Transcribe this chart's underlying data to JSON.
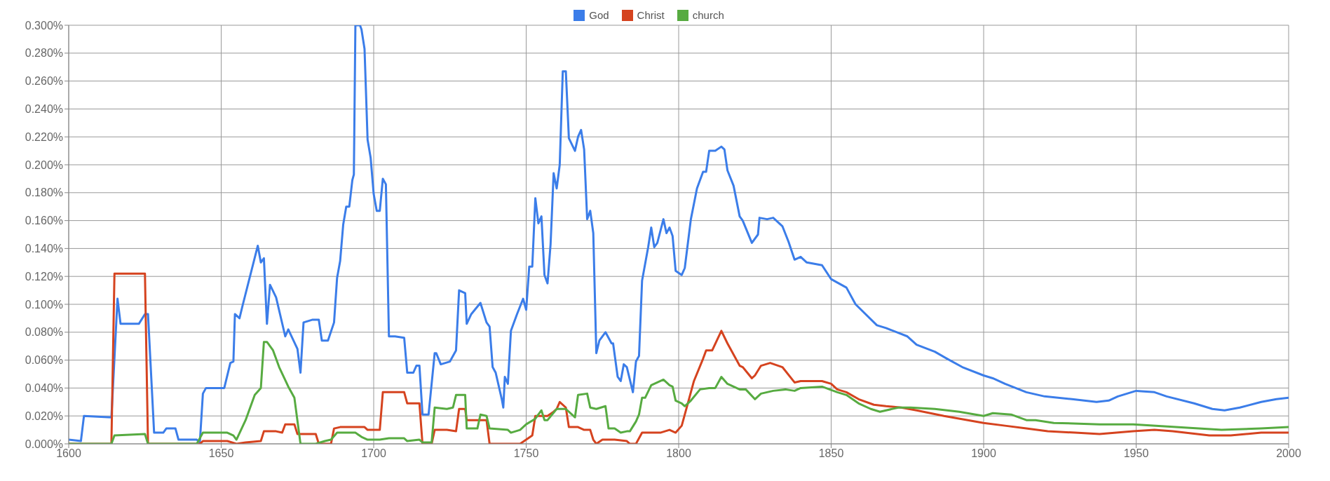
{
  "chart_data": {
    "type": "line",
    "xlim": [
      1600,
      2000
    ],
    "xticks": [
      1600,
      1650,
      1700,
      1750,
      1800,
      1850,
      1900,
      1950,
      2000
    ],
    "ylim": [
      0,
      0.3
    ],
    "yticks": [
      {
        "value": 0,
        "label": "0.000%"
      },
      {
        "value": 0.02,
        "label": "0.020%"
      },
      {
        "value": 0.04,
        "label": "0.040%"
      },
      {
        "value": 0.06,
        "label": "0.060%"
      },
      {
        "value": 0.08,
        "label": "0.080%"
      },
      {
        "value": 0.1,
        "label": "0.100%"
      },
      {
        "value": 0.12,
        "label": "0.120%"
      },
      {
        "value": 0.14,
        "label": "0.140%"
      },
      {
        "value": 0.16,
        "label": "0.160%"
      },
      {
        "value": 0.18,
        "label": "0.180%"
      },
      {
        "value": 0.2,
        "label": "0.200%"
      },
      {
        "value": 0.22,
        "label": "0.220%"
      },
      {
        "value": 0.24,
        "label": "0.240%"
      },
      {
        "value": 0.26,
        "label": "0.260%"
      },
      {
        "value": 0.28,
        "label": "0.280%"
      },
      {
        "value": 0.3,
        "label": "0.300%"
      }
    ],
    "grid": true,
    "legend": "top",
    "marker": "none",
    "line_style": "solid",
    "series": [
      {
        "name": "God",
        "color": "#3b7de9",
        "x": [
          1600,
          1604,
          1605,
          1614,
          1616,
          1617,
          1623,
          1625,
          1626,
          1628,
          1631,
          1632,
          1635,
          1636,
          1642,
          1643,
          1644,
          1645,
          1651,
          1653,
          1654,
          1654.5,
          1656,
          1657,
          1662,
          1663,
          1664,
          1665,
          1666,
          1668,
          1671,
          1672,
          1675,
          1676,
          1677,
          1680,
          1682,
          1683,
          1685,
          1687,
          1688,
          1689,
          1690,
          1691,
          1692,
          1693,
          1693.5,
          1694,
          1695.5,
          1696,
          1697,
          1698,
          1699,
          1700,
          1701,
          1702,
          1703,
          1704,
          1705,
          1707,
          1710,
          1711,
          1713,
          1714,
          1715,
          1716,
          1718,
          1720,
          1720.5,
          1722,
          1725,
          1727,
          1728,
          1730,
          1730.5,
          1732,
          1735,
          1737,
          1738,
          1739,
          1740,
          1742,
          1742.5,
          1743,
          1744,
          1745,
          1747,
          1749,
          1750,
          1751,
          1752,
          1753,
          1754,
          1755,
          1756,
          1757,
          1758,
          1759,
          1760,
          1761,
          1762,
          1763,
          1764,
          1766,
          1767,
          1768,
          1769,
          1770,
          1771,
          1772,
          1773,
          1774,
          1776,
          1778,
          1778.5,
          1780,
          1781,
          1782,
          1783,
          1785,
          1786,
          1787,
          1788,
          1790,
          1791,
          1792,
          1793,
          1795,
          1796,
          1797,
          1798,
          1799,
          1801,
          1802,
          1804,
          1806,
          1808,
          1809,
          1810,
          1812,
          1814,
          1815,
          1816,
          1818,
          1820,
          1821,
          1824,
          1826,
          1826.5,
          1829,
          1831,
          1834,
          1836,
          1838,
          1840,
          1842,
          1847,
          1850,
          1855,
          1858,
          1865,
          1868,
          1875,
          1878,
          1884,
          1888,
          1893,
          1900,
          1903,
          1907,
          1914,
          1920,
          1929,
          1937,
          1941,
          1944,
          1950,
          1956,
          1960,
          1969,
          1975,
          1979,
          1984,
          1991,
          1996,
          2000
        ],
        "values": [
          0.003,
          0.002,
          0.02,
          0.019,
          0.104,
          0.086,
          0.086,
          0.093,
          0.093,
          0.008,
          0.008,
          0.011,
          0.011,
          0.003,
          0.003,
          0.001,
          0.036,
          0.04,
          0.04,
          0.058,
          0.059,
          0.093,
          0.09,
          0.099,
          0.142,
          0.13,
          0.133,
          0.086,
          0.114,
          0.105,
          0.077,
          0.082,
          0.068,
          0.051,
          0.087,
          0.089,
          0.089,
          0.074,
          0.074,
          0.087,
          0.119,
          0.131,
          0.157,
          0.17,
          0.17,
          0.189,
          0.193,
          0.3,
          0.3,
          0.297,
          0.283,
          0.218,
          0.205,
          0.179,
          0.167,
          0.167,
          0.19,
          0.186,
          0.077,
          0.077,
          0.076,
          0.051,
          0.051,
          0.056,
          0.056,
          0.021,
          0.021,
          0.065,
          0.065,
          0.057,
          0.059,
          0.067,
          0.11,
          0.108,
          0.086,
          0.093,
          0.101,
          0.087,
          0.084,
          0.055,
          0.051,
          0.032,
          0.026,
          0.048,
          0.043,
          0.081,
          0.093,
          0.104,
          0.096,
          0.127,
          0.127,
          0.176,
          0.158,
          0.163,
          0.121,
          0.115,
          0.143,
          0.194,
          0.183,
          0.2,
          0.267,
          0.267,
          0.219,
          0.21,
          0.22,
          0.225,
          0.211,
          0.161,
          0.167,
          0.151,
          0.065,
          0.074,
          0.08,
          0.072,
          0.072,
          0.048,
          0.045,
          0.057,
          0.055,
          0.037,
          0.059,
          0.063,
          0.117,
          0.141,
          0.155,
          0.141,
          0.144,
          0.161,
          0.151,
          0.155,
          0.149,
          0.124,
          0.121,
          0.126,
          0.161,
          0.183,
          0.195,
          0.195,
          0.21,
          0.21,
          0.213,
          0.211,
          0.196,
          0.185,
          0.163,
          0.16,
          0.144,
          0.15,
          0.162,
          0.161,
          0.162,
          0.156,
          0.145,
          0.132,
          0.134,
          0.13,
          0.128,
          0.118,
          0.112,
          0.1,
          0.085,
          0.083,
          0.077,
          0.071,
          0.066,
          0.061,
          0.055,
          0.049,
          0.047,
          0.043,
          0.037,
          0.034,
          0.032,
          0.03,
          0.031,
          0.034,
          0.038,
          0.037,
          0.034,
          0.029,
          0.025,
          0.024,
          0.026,
          0.03,
          0.032,
          0.033
        ]
      },
      {
        "name": "Christ",
        "color": "#d5431f",
        "x": [
          1600,
          1614,
          1615,
          1625,
          1626,
          1643,
          1644,
          1652,
          1655,
          1658,
          1663,
          1664,
          1668,
          1670,
          1671,
          1674,
          1675,
          1681,
          1682,
          1686,
          1687,
          1689,
          1697,
          1698,
          1702,
          1703,
          1705,
          1710,
          1711,
          1715,
          1716,
          1719,
          1720,
          1724,
          1727,
          1728,
          1730,
          1730.5,
          1737,
          1738,
          1748,
          1750,
          1752,
          1753,
          1757,
          1759,
          1760,
          1761,
          1763,
          1764,
          1767,
          1769,
          1771,
          1772,
          1773,
          1775,
          1779,
          1783,
          1784,
          1786,
          1788,
          1794,
          1797,
          1799,
          1801,
          1803,
          1805,
          1808,
          1809,
          1811,
          1814,
          1816,
          1820,
          1821,
          1824,
          1825,
          1827,
          1830,
          1834,
          1838,
          1840,
          1847,
          1850,
          1852,
          1855,
          1859,
          1864,
          1868,
          1873,
          1878,
          1887,
          1900,
          1907,
          1914,
          1921,
          1930,
          1938,
          1949,
          1956,
          1962,
          1974,
          1981,
          1991,
          2000
        ],
        "values": [
          0,
          0,
          0.122,
          0.122,
          0,
          0,
          0.002,
          0.002,
          0,
          0.001,
          0.002,
          0.009,
          0.009,
          0.008,
          0.014,
          0.014,
          0.007,
          0.007,
          0,
          0,
          0.011,
          0.012,
          0.012,
          0.01,
          0.01,
          0.037,
          0.037,
          0.037,
          0.029,
          0.029,
          0,
          0,
          0.01,
          0.01,
          0.009,
          0.025,
          0.025,
          0.017,
          0.017,
          0,
          0,
          0.003,
          0.006,
          0.02,
          0.02,
          0.023,
          0.025,
          0.03,
          0.026,
          0.012,
          0.012,
          0.01,
          0.01,
          0.003,
          0,
          0.003,
          0.003,
          0.002,
          0,
          0,
          0.008,
          0.008,
          0.01,
          0.008,
          0.013,
          0.029,
          0.045,
          0.061,
          0.067,
          0.067,
          0.081,
          0.072,
          0.056,
          0.055,
          0.047,
          0.049,
          0.056,
          0.058,
          0.055,
          0.044,
          0.045,
          0.045,
          0.043,
          0.039,
          0.037,
          0.032,
          0.028,
          0.027,
          0.026,
          0.024,
          0.02,
          0.015,
          0.013,
          0.011,
          0.009,
          0.008,
          0.007,
          0.009,
          0.01,
          0.009,
          0.006,
          0.006,
          0.008,
          0.008
        ]
      },
      {
        "name": "church",
        "color": "#57ab41",
        "x": [
          1600,
          1614,
          1615,
          1625,
          1626,
          1642,
          1644,
          1652,
          1654,
          1655,
          1658,
          1659,
          1661,
          1663,
          1664,
          1665,
          1667,
          1669,
          1672,
          1674,
          1676,
          1681,
          1684,
          1686,
          1688,
          1694,
          1696,
          1698,
          1702,
          1705,
          1710,
          1711,
          1715,
          1716,
          1719,
          1720,
          1724,
          1726,
          1727,
          1730,
          1730.5,
          1734,
          1735,
          1737,
          1738,
          1744,
          1745,
          1748,
          1750,
          1753,
          1755,
          1756,
          1757,
          1760,
          1763,
          1766,
          1767,
          1770,
          1771,
          1773,
          1776,
          1777,
          1779,
          1781,
          1783,
          1784,
          1786,
          1787,
          1788,
          1789,
          1791,
          1793,
          1795,
          1797,
          1798,
          1799,
          1801,
          1802,
          1804,
          1807,
          1810,
          1812,
          1814,
          1816,
          1820,
          1822,
          1825,
          1827,
          1831,
          1835,
          1838,
          1840,
          1847,
          1852,
          1855,
          1859,
          1863,
          1866,
          1872,
          1876,
          1884,
          1892,
          1900,
          1903,
          1909,
          1914,
          1917,
          1923,
          1938,
          1949,
          1963,
          1978,
          1991,
          2000
        ],
        "values": [
          0,
          0,
          0.006,
          0.007,
          0,
          0,
          0.008,
          0.008,
          0.006,
          0.003,
          0.017,
          0.023,
          0.035,
          0.04,
          0.073,
          0.073,
          0.067,
          0.055,
          0.041,
          0.033,
          0,
          0,
          0.002,
          0.003,
          0.008,
          0.008,
          0.005,
          0.003,
          0.003,
          0.004,
          0.004,
          0.002,
          0.003,
          0.001,
          0.001,
          0.026,
          0.025,
          0.026,
          0.035,
          0.035,
          0.011,
          0.011,
          0.021,
          0.02,
          0.011,
          0.01,
          0.008,
          0.01,
          0.014,
          0.018,
          0.024,
          0.017,
          0.017,
          0.025,
          0.025,
          0.019,
          0.035,
          0.036,
          0.026,
          0.025,
          0.027,
          0.011,
          0.011,
          0.008,
          0.009,
          0.009,
          0.016,
          0.021,
          0.033,
          0.033,
          0.042,
          0.044,
          0.046,
          0.042,
          0.041,
          0.031,
          0.029,
          0.027,
          0.031,
          0.039,
          0.04,
          0.04,
          0.048,
          0.043,
          0.039,
          0.039,
          0.032,
          0.036,
          0.038,
          0.039,
          0.038,
          0.04,
          0.041,
          0.037,
          0.035,
          0.029,
          0.025,
          0.023,
          0.026,
          0.026,
          0.025,
          0.023,
          0.02,
          0.022,
          0.021,
          0.017,
          0.017,
          0.015,
          0.014,
          0.014,
          0.012,
          0.01,
          0.011,
          0.012
        ]
      }
    ]
  }
}
